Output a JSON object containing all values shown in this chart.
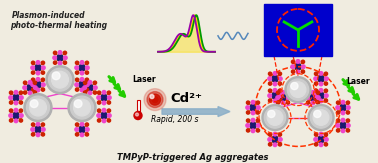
{
  "bg_color": "#f0ece0",
  "title_text": "TMPyP-triggered Ag aggregates",
  "left_label1": "Plasmon-induced",
  "left_label2": "photo-thermal heating",
  "laser_label": "Laser",
  "cd_label": "Cd²⁺",
  "rapid_label": "Rapid, 200 s",
  "arrow_color": "#8aaec8",
  "green_arrow_color": "#22cc00",
  "cd_sphere_color": "#cc1100",
  "porphyrin_center_color": "#1a1a6e",
  "porphyrin_linker_color": "#ee44cc",
  "porphyrin_arm_color": "#cc2200",
  "spectra_yellow": "#ffdd00",
  "spectra_green": "#009900",
  "spectra_purple": "#9900aa",
  "wave_color": "#5588bb",
  "hotspot_bg": "#0000cc",
  "hotspot_circle_color": "#ff2200",
  "hotspot_inner_color": "#00dd00",
  "dashed_red": "#ff3300"
}
